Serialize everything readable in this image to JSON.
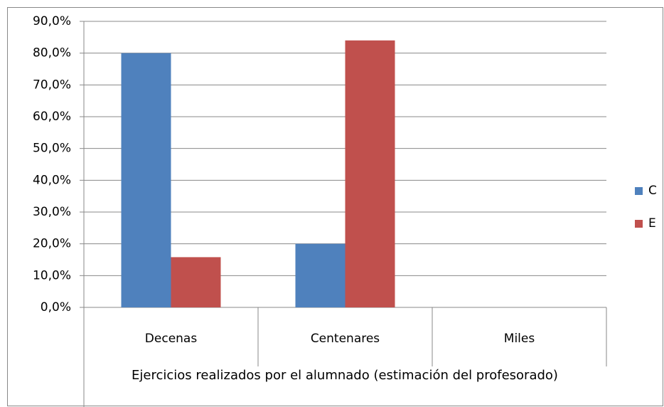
{
  "chart_data": {
    "type": "bar",
    "x_label": "Ejercicios realizados por el alumnado (estimación del profesorado)",
    "categories": [
      "Decenas",
      "Centenares",
      "Miles"
    ],
    "series": [
      {
        "name": "C",
        "color": "#4f81bd",
        "values": [
          80,
          20,
          0
        ]
      },
      {
        "name": "E",
        "color": "#c0504d",
        "values": [
          15.8,
          84,
          0
        ]
      }
    ],
    "ylim": [
      0,
      90
    ],
    "yticks": [
      {
        "value": 0,
        "label": "0,0%"
      },
      {
        "value": 10,
        "label": "10,0%"
      },
      {
        "value": 20,
        "label": "20,0%"
      },
      {
        "value": 30,
        "label": "30,0%"
      },
      {
        "value": 40,
        "label": "40,0%"
      },
      {
        "value": 50,
        "label": "50,0%"
      },
      {
        "value": 60,
        "label": "60,0%"
      },
      {
        "value": 70,
        "label": "70,0%"
      },
      {
        "value": 80,
        "label": "80,0%"
      },
      {
        "value": 90,
        "label": "90,0%"
      }
    ],
    "grid": true,
    "legend": "right"
  }
}
